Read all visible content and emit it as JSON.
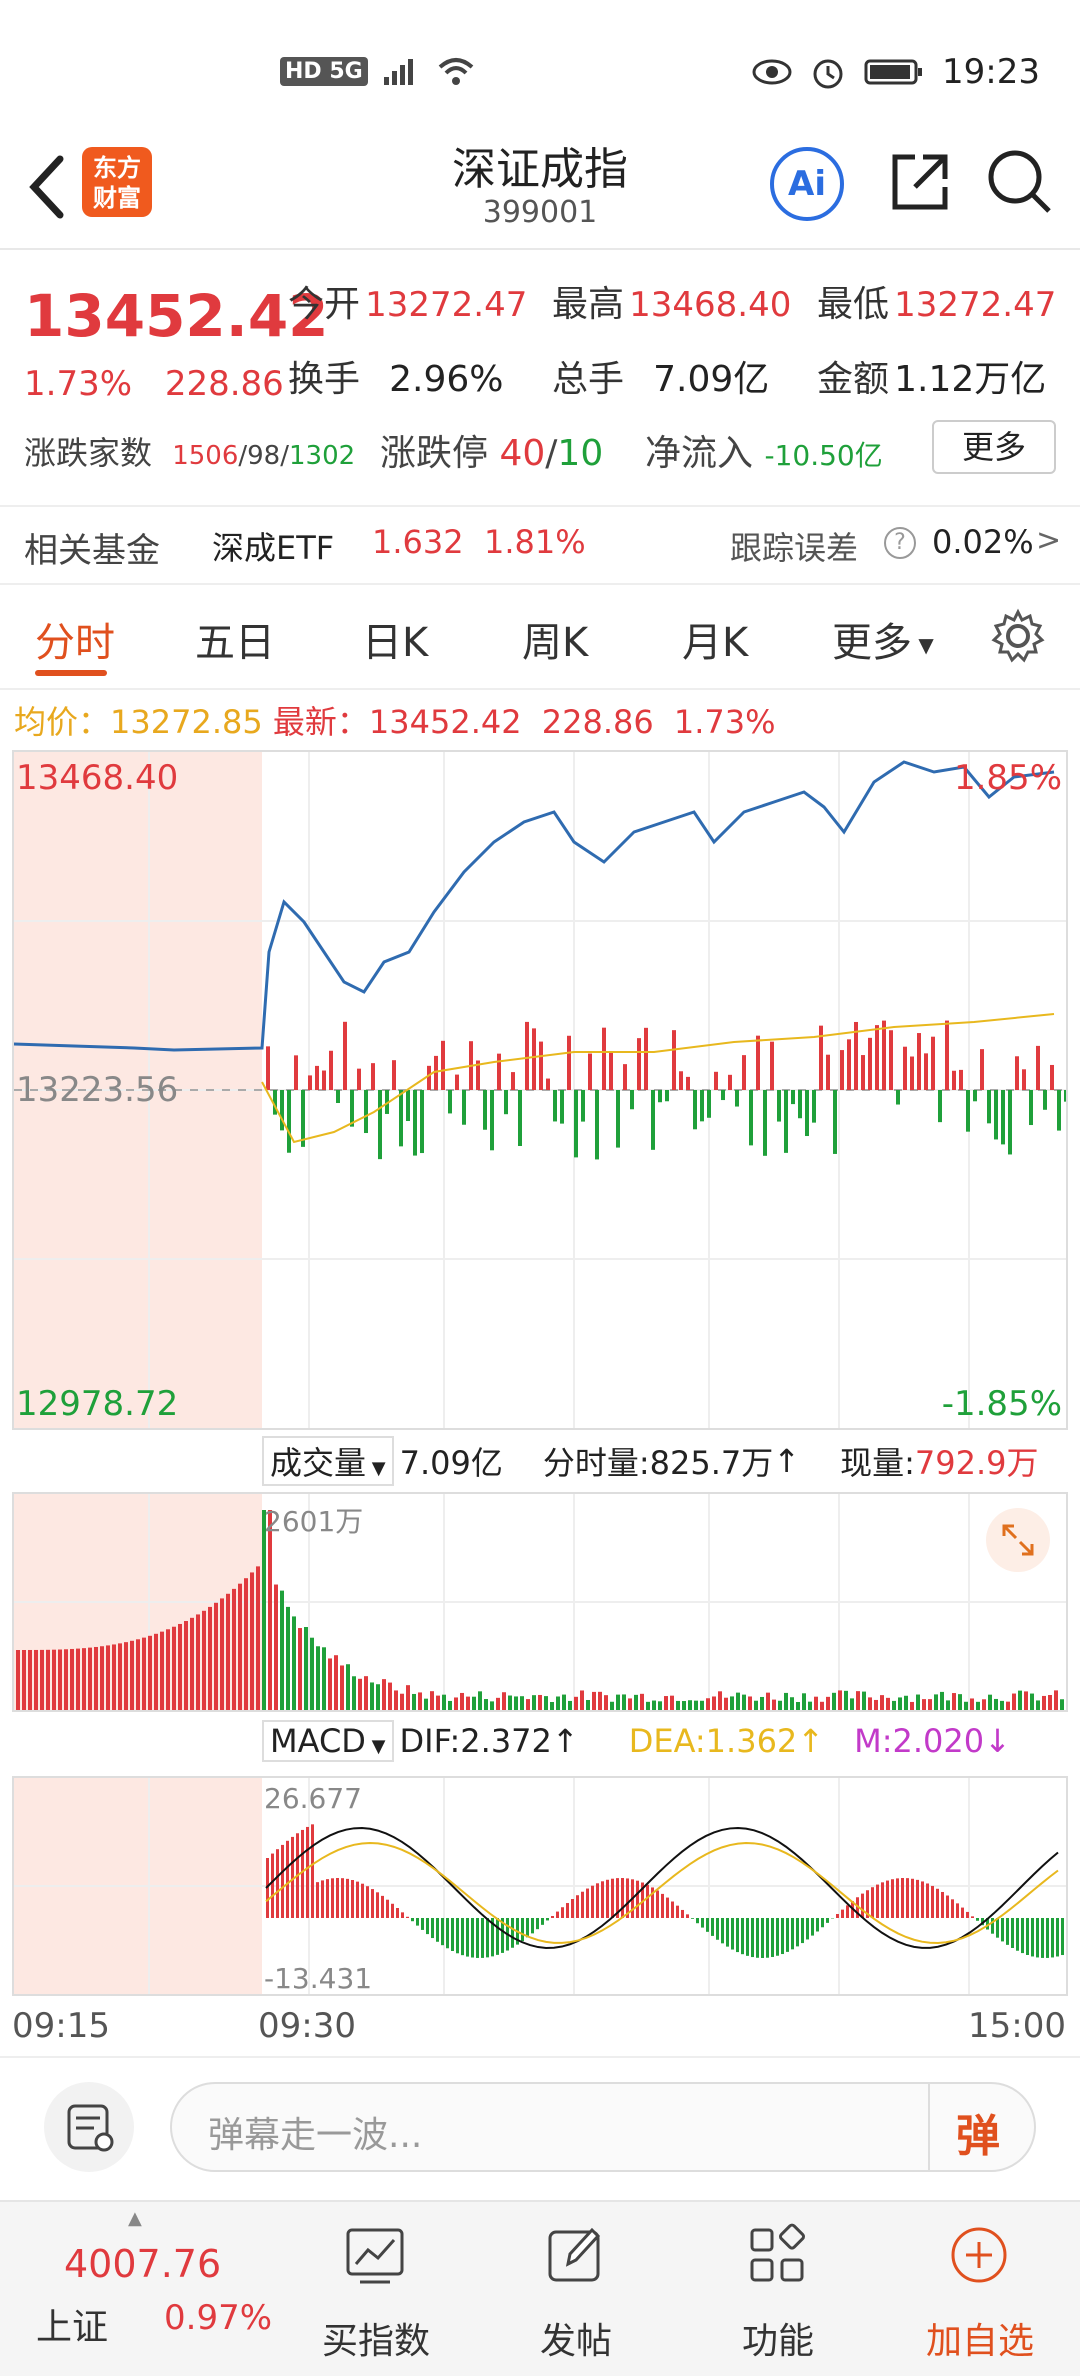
{
  "status_bar": {
    "network": "HD 5G",
    "time": "19:23"
  },
  "header": {
    "title": "深证成指",
    "code": "399001",
    "logo_line1": "东方",
    "logo_line2": "财富",
    "ai_label": "Ai"
  },
  "quote": {
    "price": "13452.42",
    "change_pct": "1.73%",
    "change_abs": "228.86",
    "open_label": "今开",
    "open": "13272.47",
    "high_label": "最高",
    "high": "13468.40",
    "low_label": "最低",
    "low": "13272.47",
    "turnover_label": "换手",
    "turnover": "2.96%",
    "volume_label": "总手",
    "volume": "7.09亿",
    "amount_label": "金额",
    "amount": "1.12万亿",
    "breadth_label": "涨跌家数",
    "breadth_up": "1506",
    "breadth_flat": "98",
    "breadth_down": "1302",
    "limit_label": "涨跌停",
    "limit_up": "40",
    "limit_down": "10",
    "netflow_label": "净流入",
    "netflow": "-10.50亿",
    "more_button": "更多"
  },
  "fund": {
    "label": "相关基金",
    "name": "深成ETF",
    "price": "1.632",
    "pct": "1.81%",
    "err_label": "跟踪误差",
    "err_value": "0.02%"
  },
  "tabs": [
    {
      "label": "分时"
    },
    {
      "label": "五日"
    },
    {
      "label": "日K"
    },
    {
      "label": "周K"
    },
    {
      "label": "月K"
    },
    {
      "label": "更多"
    }
  ],
  "avg_bar": {
    "avg_label": "均价：",
    "avg": "13272.85",
    "latest_label": "最新：",
    "latest": "13452.42",
    "chg": "228.86",
    "pct": "1.73%"
  },
  "price_chart": {
    "top_left": "13468.40",
    "mid_left": "13223.56",
    "bottom_left": "12978.72",
    "top_right": "1.85%",
    "bottom_right": "-1.85%"
  },
  "volume_bar": {
    "dropdown": "成交量",
    "total": "7.09亿",
    "period_label": "分时量:",
    "period_value": "825.7万",
    "now_label": "现量:",
    "now_value": "792.9万",
    "max_label": "2601万"
  },
  "macd_bar": {
    "dropdown": "MACD",
    "dif_label": "DIF:",
    "dif": "2.372",
    "dea_label": "DEA:",
    "dea": "1.362",
    "m_label": "M:",
    "m": "2.020",
    "top_label": "26.677",
    "bottom_label": "-13.431"
  },
  "time_axis": {
    "start": "09:15",
    "open": "09:30",
    "end": "15:00"
  },
  "danmaku": {
    "placeholder": "弹幕走一波...",
    "send_label": "弹"
  },
  "bottom_nav": {
    "index_value": "4007.76",
    "index_name": "上证",
    "index_pct": "0.97%",
    "items": [
      {
        "label": "买指数"
      },
      {
        "label": "发帖"
      },
      {
        "label": "功能"
      },
      {
        "label": "加自选"
      }
    ]
  },
  "colors": {
    "up": "#e03a3e",
    "down": "#1fa03a",
    "accent": "#e0501e",
    "price_line": "#2f6bb0",
    "avg_line": "#e8b81e"
  }
}
